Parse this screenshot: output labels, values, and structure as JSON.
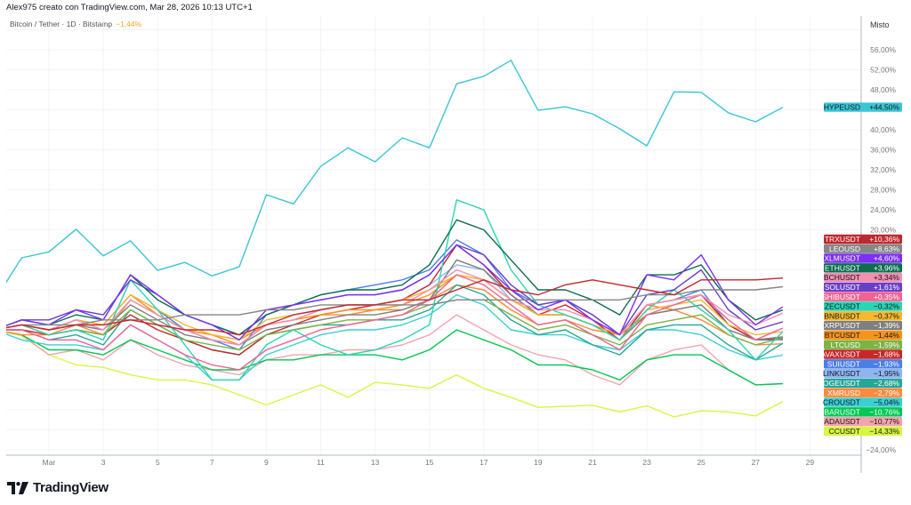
{
  "header": {
    "title": "Alex975 creato con TradingView.com, Mar 28, 2026 10:13 UTC+1"
  },
  "legend": {
    "symbol": "Bitcoin / Tether · 1D · Bitstamp",
    "change": "−1,44%"
  },
  "scale_mode": "Misto",
  "logo": "TradingView",
  "chart_data": {
    "type": "line",
    "title": "",
    "x": [
      "Feb 27",
      "Feb 28",
      "Mar 1",
      "Mar 2",
      "Mar 3",
      "Mar 4",
      "Mar 5",
      "Mar 6",
      "Mar 7",
      "Mar 8",
      "Mar 9",
      "Mar 10",
      "Mar 11",
      "Mar 12",
      "Mar 13",
      "Mar 14",
      "Mar 15",
      "Mar 16",
      "Mar 17",
      "Mar 18",
      "Mar 19",
      "Mar 20",
      "Mar 21",
      "Mar 22",
      "Mar 23",
      "Mar 24",
      "Mar 25",
      "Mar 26",
      "Mar 27",
      "Mar 28"
    ],
    "x_tick_labels": [
      {
        "day": 1,
        "label": "Mar"
      },
      {
        "day": 3,
        "label": "3"
      },
      {
        "day": 5,
        "label": "5"
      },
      {
        "day": 7,
        "label": "7"
      },
      {
        "day": 9,
        "label": "9"
      },
      {
        "day": 11,
        "label": "11"
      },
      {
        "day": 13,
        "label": "13"
      },
      {
        "day": 15,
        "label": "15"
      },
      {
        "day": 17,
        "label": "17"
      },
      {
        "day": 19,
        "label": "19"
      },
      {
        "day": 21,
        "label": "21"
      },
      {
        "day": 23,
        "label": "23"
      },
      {
        "day": 25,
        "label": "25"
      },
      {
        "day": 27,
        "label": "27"
      },
      {
        "day": 29,
        "label": "29"
      }
    ],
    "y_tick_labels": [
      {
        "v": 56,
        "label": "56,00%"
      },
      {
        "v": 52,
        "label": "52,00%"
      },
      {
        "v": 48,
        "label": "48,00%"
      },
      {
        "v": 40,
        "label": "40,00%"
      },
      {
        "v": 36,
        "label": "36,00%"
      },
      {
        "v": 32,
        "label": "32,00%"
      },
      {
        "v": 28,
        "label": "28,00%"
      },
      {
        "v": 24,
        "label": "24,00%"
      },
      {
        "v": 20,
        "label": "20,00%"
      },
      {
        "v": -24,
        "label": "−24,00%"
      }
    ],
    "ylim": [
      -26,
      62
    ],
    "yunit": "%",
    "grid": true,
    "legend_placement": "right-axis-labels",
    "series": [
      {
        "name": "HYPEUSD",
        "value_label": "+44,50%",
        "color": "#3bc5d4",
        "text": "#131722",
        "values": [
          5.9,
          14.4,
          15.6,
          20.1,
          14.8,
          17.8,
          11.9,
          13.5,
          10.8,
          12.6,
          27,
          25.2,
          32.7,
          36.4,
          33.6,
          38.4,
          36.4,
          49.2,
          50.7,
          53.9,
          43.9,
          44.6,
          43.2,
          40.2,
          36.8,
          47.6,
          47.5,
          43.4,
          41.6,
          44.5
        ]
      },
      {
        "name": "TRXUSDT",
        "value_label": "+10,36%",
        "color": "#c0282f",
        "text": "#ffffff",
        "values": [
          0,
          1,
          0,
          1,
          1,
          2,
          1,
          0,
          0,
          -1,
          1,
          3,
          4,
          5,
          5,
          6,
          6,
          8,
          10,
          8,
          7,
          9,
          10,
          9,
          8,
          7,
          10,
          10,
          10,
          10.36
        ]
      },
      {
        "name": "LEOUSD",
        "value_label": "+8,63%",
        "color": "#868686",
        "text": "#ffffff",
        "values": [
          0,
          1,
          1,
          1,
          2,
          2,
          2,
          3,
          3,
          3,
          4,
          4,
          5,
          5,
          5,
          5,
          5,
          6,
          6,
          6,
          6,
          6,
          6,
          6,
          7,
          7,
          8,
          8,
          8,
          8.63
        ]
      },
      {
        "name": "XLMUSDT",
        "value_label": "+4,60%",
        "color": "#7b2ff7",
        "text": "#ffffff",
        "values": [
          0,
          2,
          1,
          4,
          2,
          11,
          7,
          3,
          1,
          -2,
          4,
          5,
          6,
          7,
          7,
          8,
          11,
          17,
          13,
          8,
          4,
          6,
          2,
          -1,
          11,
          10,
          15,
          6,
          1,
          4.6
        ]
      },
      {
        "name": "ETHUSDT",
        "value_label": "+3,96%",
        "color": "#0b6e4f",
        "text": "#ffffff",
        "values": [
          0,
          2,
          1,
          3,
          2,
          11,
          6,
          3,
          1,
          -1,
          3,
          5,
          7,
          8,
          8,
          9,
          13,
          22,
          20,
          14,
          8,
          8,
          6,
          3,
          11,
          11,
          13,
          6,
          2,
          3.96
        ]
      },
      {
        "name": "BCHUSDT",
        "value_label": "+3,34%",
        "color": "#f48fb1",
        "text": "#131722",
        "values": [
          0,
          1,
          0,
          2,
          0,
          6,
          3,
          0,
          -2,
          -3,
          1,
          2,
          4,
          5,
          5,
          5,
          8,
          12,
          10,
          6,
          4,
          4,
          2,
          -1,
          5,
          6,
          7,
          3,
          1,
          3.34
        ]
      },
      {
        "name": "SOLUSDT",
        "value_label": "+1,61%",
        "color": "#6a3fc7",
        "text": "#ffffff",
        "values": [
          0,
          2,
          2,
          4,
          3,
          10,
          7,
          3,
          1,
          -1,
          3,
          5,
          6,
          7,
          7,
          8,
          11,
          17,
          15,
          9,
          5,
          6,
          3,
          -1,
          7,
          8,
          12,
          4,
          0,
          1.61
        ]
      },
      {
        "name": "SHIBUSDT",
        "value_label": "+0,35%",
        "color": "#f06292",
        "text": "#ffffff",
        "values": [
          0,
          0,
          -2,
          -2,
          -4,
          1,
          -2,
          -5,
          -7,
          -8,
          -4,
          -2,
          0,
          1,
          2,
          3,
          6,
          11,
          9,
          5,
          1,
          2,
          -1,
          -4,
          3,
          5,
          7,
          2,
          -2,
          0.35
        ]
      },
      {
        "name": "ZECUSDT",
        "value_label": "−0,32%",
        "color": "#2bd4b4",
        "text": "#131722",
        "values": [
          0,
          1,
          -1,
          0,
          -2,
          10,
          4,
          -3,
          -10,
          -10,
          -3,
          0,
          -3,
          -5,
          -4,
          -2,
          1,
          26,
          24,
          12,
          5,
          3,
          1,
          -2,
          4,
          8,
          4,
          0,
          -6,
          -0.32
        ]
      },
      {
        "name": "BNBUSDT",
        "value_label": "−0,37%",
        "color": "#f5b82e",
        "text": "#131722",
        "values": [
          0,
          1,
          0,
          2,
          1,
          7,
          4,
          1,
          -1,
          -2,
          2,
          3,
          4,
          5,
          5,
          6,
          8,
          11,
          10,
          6,
          3,
          3,
          1,
          -2,
          4,
          5,
          6,
          1,
          -1,
          -0.37
        ]
      },
      {
        "name": "XRPUSDT",
        "value_label": "−1,39%",
        "color": "#7f7f7f",
        "text": "#ffffff",
        "values": [
          0,
          1,
          0,
          1,
          0,
          5,
          2,
          -1,
          -2,
          -3,
          0,
          1,
          2,
          3,
          3,
          4,
          6,
          14,
          12,
          7,
          3,
          3,
          1,
          -2,
          3,
          4,
          5,
          0,
          -2,
          -1.39
        ]
      },
      {
        "name": "BTCUSDT",
        "value_label": "−1,44%",
        "color": "#f7931a",
        "text": "#131722",
        "values": [
          0,
          1,
          0,
          2,
          1,
          7,
          3,
          0,
          -1,
          -3,
          1,
          2,
          3,
          4,
          4,
          5,
          7,
          11,
          10,
          6,
          3,
          3,
          1,
          -1,
          3,
          4,
          5,
          0,
          -2,
          -1.44
        ]
      },
      {
        "name": "LTCUSD",
        "value_label": "−1,59%",
        "color": "#7cb342",
        "text": "#ffffff",
        "values": [
          0,
          1,
          -1,
          0,
          -1,
          4,
          1,
          -2,
          -3,
          -4,
          -1,
          0,
          1,
          2,
          2,
          3,
          5,
          6,
          6,
          3,
          0,
          1,
          -1,
          -3,
          1,
          2,
          3,
          -1,
          -3,
          -1.59
        ]
      },
      {
        "name": "AVAXUSDT",
        "value_label": "−1,68%",
        "color": "#c62828",
        "text": "#ffffff",
        "values": [
          0,
          0,
          -1,
          0,
          -1,
          3,
          0,
          -2,
          -4,
          -5,
          -1,
          1,
          3,
          4,
          5,
          6,
          9,
          17,
          13,
          7,
          3,
          5,
          2,
          -2,
          5,
          6,
          7,
          1,
          -2,
          -1.68
        ]
      },
      {
        "name": "SUIUSDT",
        "value_label": "−1,93%",
        "color": "#4a7fe8",
        "text": "#ffffff",
        "values": [
          0,
          1,
          0,
          2,
          1,
          7,
          4,
          0,
          -2,
          -4,
          3,
          5,
          7,
          8,
          9,
          10,
          12,
          18,
          15,
          8,
          5,
          6,
          3,
          -1,
          5,
          6,
          8,
          1,
          -2,
          -1.93
        ]
      },
      {
        "name": "LINKUSDT",
        "value_label": "−1,95%",
        "color": "#8fb5f0",
        "text": "#131722",
        "values": [
          0,
          1,
          0,
          1,
          0,
          6,
          3,
          0,
          -2,
          -3,
          1,
          2,
          4,
          5,
          5,
          6,
          9,
          13,
          12,
          6,
          3,
          3,
          1,
          -2,
          4,
          5,
          7,
          1,
          -2,
          -1.95
        ]
      },
      {
        "name": "DOGEUSDT",
        "value_label": "−2,68%",
        "color": "#26a69a",
        "text": "#ffffff",
        "values": [
          0,
          0,
          -2,
          -1,
          -3,
          4,
          1,
          -2,
          -4,
          -5,
          -1,
          0,
          1,
          1,
          2,
          2,
          4,
          9,
          7,
          2,
          -1,
          0,
          -3,
          -5,
          0,
          1,
          1,
          -3,
          -6,
          -2.68
        ]
      },
      {
        "name": "XMRUSD",
        "value_label": "−2,79%",
        "color": "#ff8a3d",
        "text": "#ffffff",
        "values": [
          0,
          -1,
          -1,
          1,
          -1,
          6,
          3,
          0,
          -1,
          -2,
          1,
          2,
          3,
          3,
          4,
          4,
          6,
          9,
          8,
          4,
          1,
          2,
          0,
          -1,
          5,
          4,
          2,
          -1,
          -3,
          -2.79
        ]
      },
      {
        "name": "CROUSDT",
        "value_label": "−5,04%",
        "color": "#3ccfcf",
        "text": "#131722",
        "values": [
          0,
          -2,
          -3,
          -3,
          -4,
          1,
          -2,
          -5,
          -10,
          -10,
          -5,
          -3,
          -1,
          0,
          0,
          1,
          3,
          7,
          5,
          0,
          -1,
          -1,
          -3,
          -4,
          0,
          0,
          -1,
          -4,
          -6,
          -5.04
        ]
      },
      {
        "name": "HBARUSDT",
        "value_label": "−10,76%",
        "color": "#00c853",
        "text": "#ffffff",
        "values": [
          0,
          -1,
          -4,
          -4,
          -5,
          -2,
          -4,
          -6,
          -8,
          -8,
          -6,
          -6,
          -5,
          -5,
          -5,
          -6,
          -4,
          0,
          -2,
          -4,
          -7,
          -7,
          -8,
          -10,
          -6,
          -5,
          -5,
          -8,
          -11,
          -10.76
        ]
      },
      {
        "name": "ADAUSDT",
        "value_label": "−10,77%",
        "color": "#f4a3ad",
        "text": "#131722",
        "values": [
          0,
          -1,
          -5,
          -4,
          -6,
          -2,
          -5,
          -7,
          -8,
          -9,
          -6,
          -5,
          -5,
          -4,
          -4,
          -3,
          -1,
          3,
          0,
          -3,
          -5,
          -6,
          -9,
          -11,
          -6,
          -4,
          -3,
          -8,
          -11,
          -10.77
        ]
      },
      {
        "name": "CCUSDT",
        "value_label": "−14,33%",
        "color": "#d8f542",
        "text": "#131722",
        "values": [
          0,
          -1.2,
          -5,
          -7,
          -7.5,
          -9,
          -10,
          -10,
          -11,
          -13,
          -15,
          -13,
          -11,
          -13.5,
          -10.5,
          -11,
          -11.7,
          -9,
          -11.7,
          -13.5,
          -15.5,
          -15.3,
          -15.1,
          -16.4,
          -15.2,
          -17.4,
          -16.2,
          -16.4,
          -17.2,
          -14.33
        ]
      }
    ]
  }
}
